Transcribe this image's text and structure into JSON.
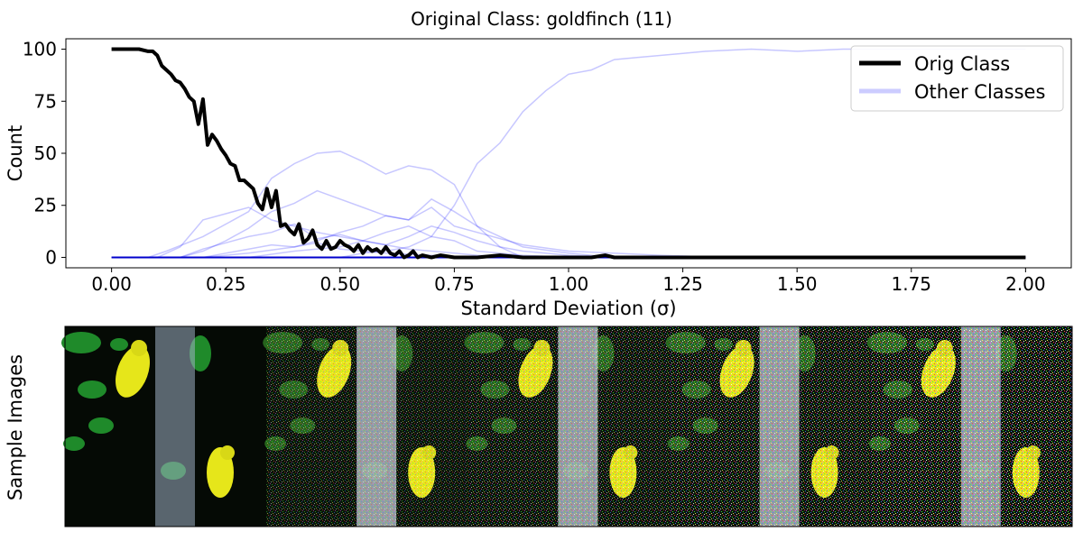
{
  "chart_data": {
    "type": "line",
    "title": "Original Class: goldfinch (11)",
    "xlabel": "Standard Deviation (σ)",
    "ylabel": "Count",
    "xlim": [
      -0.1,
      2.1
    ],
    "ylim": [
      -5,
      105
    ],
    "xticks": [
      "0.00",
      "0.25",
      "0.50",
      "0.75",
      "1.00",
      "1.25",
      "1.50",
      "1.75",
      "2.00"
    ],
    "xtick_values": [
      0,
      0.25,
      0.5,
      0.75,
      1.0,
      1.25,
      1.5,
      1.75,
      2.0
    ],
    "yticks": [
      "0",
      "25",
      "50",
      "75",
      "100"
    ],
    "ytick_values": [
      0,
      25,
      50,
      75,
      100
    ],
    "legend": {
      "position": "top-right",
      "entries": [
        "Orig Class",
        "Other Classes"
      ]
    },
    "colors": {
      "orig": "#000000",
      "other": "#0000ff",
      "other_legend": "#ccccff"
    },
    "series": [
      {
        "name": "Orig Class",
        "x": [
          0.0,
          0.02,
          0.04,
          0.06,
          0.08,
          0.09,
          0.1,
          0.11,
          0.12,
          0.13,
          0.14,
          0.15,
          0.16,
          0.17,
          0.18,
          0.19,
          0.2,
          0.21,
          0.22,
          0.23,
          0.24,
          0.25,
          0.26,
          0.27,
          0.28,
          0.29,
          0.3,
          0.31,
          0.32,
          0.33,
          0.34,
          0.35,
          0.36,
          0.37,
          0.38,
          0.39,
          0.4,
          0.41,
          0.42,
          0.43,
          0.44,
          0.45,
          0.46,
          0.47,
          0.48,
          0.49,
          0.5,
          0.51,
          0.52,
          0.53,
          0.54,
          0.55,
          0.56,
          0.57,
          0.58,
          0.59,
          0.6,
          0.61,
          0.62,
          0.63,
          0.64,
          0.65,
          0.66,
          0.67,
          0.68,
          0.7,
          0.72,
          0.75,
          0.8,
          0.85,
          0.9,
          0.95,
          1.0,
          1.05,
          1.08,
          1.1,
          1.2,
          1.4,
          1.6,
          1.8,
          2.0
        ],
        "y": [
          100,
          100,
          100,
          100,
          99,
          99,
          97,
          92,
          90,
          88,
          85,
          84,
          81,
          77,
          75,
          64,
          76,
          54,
          59,
          56,
          52,
          49,
          45,
          44,
          37,
          37,
          35,
          33,
          26,
          23,
          33,
          24,
          32,
          15,
          16,
          13,
          11,
          16,
          7,
          9,
          13,
          6,
          4,
          8,
          4,
          5,
          8,
          6,
          5,
          3,
          6,
          2,
          5,
          3,
          4,
          2,
          5,
          2,
          1,
          3,
          0,
          1,
          3,
          0,
          1,
          0,
          1,
          0,
          0,
          1,
          0,
          0,
          0,
          0,
          1,
          0,
          0,
          0,
          0,
          0,
          0
        ]
      }
    ],
    "other_classes": [
      {
        "x": [
          0.0,
          0.1,
          0.15,
          0.2,
          0.25,
          0.3,
          0.35,
          0.4,
          0.45,
          0.5,
          0.55,
          0.6,
          0.65,
          0.7,
          0.75,
          0.8,
          0.85,
          0.9,
          0.95,
          1.0,
          1.05,
          1.1,
          1.15,
          1.2,
          1.25,
          1.3,
          1.4,
          1.5,
          1.6,
          1.7,
          1.8,
          1.9,
          2.0
        ],
        "y": [
          0,
          0,
          0,
          0,
          0,
          0,
          0,
          0,
          0,
          0,
          2,
          3,
          5,
          10,
          25,
          45,
          55,
          70,
          80,
          88,
          90,
          95,
          96,
          97,
          98,
          99,
          100,
          99,
          100,
          100,
          100,
          100,
          100
        ]
      },
      {
        "x": [
          0.0,
          0.08,
          0.12,
          0.2,
          0.3,
          0.35,
          0.4,
          0.45,
          0.5,
          0.55,
          0.6,
          0.65,
          0.7,
          0.75,
          0.8,
          0.85,
          0.9
        ],
        "y": [
          0,
          0,
          3,
          10,
          22,
          38,
          45,
          50,
          51,
          46,
          40,
          44,
          42,
          35,
          15,
          5,
          0
        ]
      },
      {
        "x": [
          0.0,
          0.1,
          0.15,
          0.2,
          0.25,
          0.3,
          0.35,
          0.4,
          0.45,
          0.5,
          0.55,
          0.6,
          0.65,
          0.7,
          0.75,
          0.8,
          0.85,
          0.9,
          1.0
        ],
        "y": [
          0,
          0,
          5,
          18,
          21,
          24,
          18,
          15,
          12,
          10,
          8,
          12,
          15,
          10,
          8,
          3,
          2,
          1,
          0
        ]
      },
      {
        "x": [
          0.0,
          0.15,
          0.2,
          0.25,
          0.3,
          0.35,
          0.4,
          0.45,
          0.5,
          0.55,
          0.6,
          0.65,
          0.7,
          0.75,
          0.8,
          0.85,
          0.9,
          1.0,
          1.1
        ],
        "y": [
          0,
          0,
          3,
          8,
          14,
          22,
          26,
          32,
          28,
          24,
          20,
          18,
          28,
          22,
          15,
          10,
          5,
          2,
          0
        ]
      },
      {
        "x": [
          0.0,
          0.2,
          0.3,
          0.4,
          0.45,
          0.5,
          0.55,
          0.6,
          0.65,
          0.7,
          0.75,
          0.8,
          0.9,
          1.0,
          1.2,
          1.35
        ],
        "y": [
          0,
          0,
          2,
          5,
          8,
          12,
          15,
          20,
          18,
          24,
          15,
          12,
          6,
          3,
          1,
          0
        ]
      },
      {
        "x": [
          0.0,
          0.15,
          0.2,
          0.25,
          0.3,
          0.35,
          0.4,
          0.45,
          0.5,
          0.55,
          0.6,
          0.65,
          0.7,
          0.8,
          0.9
        ],
        "y": [
          0,
          0,
          4,
          7,
          10,
          12,
          16,
          9,
          11,
          8,
          6,
          4,
          3,
          1,
          0
        ]
      },
      {
        "x": [
          0.0,
          0.3,
          0.4,
          0.5,
          0.55,
          0.6,
          0.65,
          0.7,
          0.75,
          0.8,
          0.85,
          0.9,
          1.0,
          1.1
        ],
        "y": [
          0,
          0,
          3,
          5,
          8,
          6,
          10,
          15,
          12,
          8,
          5,
          3,
          1,
          0
        ]
      },
      {
        "x": [
          0.0,
          0.2,
          0.25,
          0.3,
          0.35,
          0.4,
          0.45,
          0.5,
          0.55,
          0.6,
          0.7,
          0.8
        ],
        "y": [
          0,
          0,
          2,
          4,
          6,
          5,
          7,
          4,
          3,
          2,
          1,
          0
        ]
      }
    ]
  },
  "image_strip": {
    "ylabel": "Sample Images",
    "panel_count": 5
  }
}
